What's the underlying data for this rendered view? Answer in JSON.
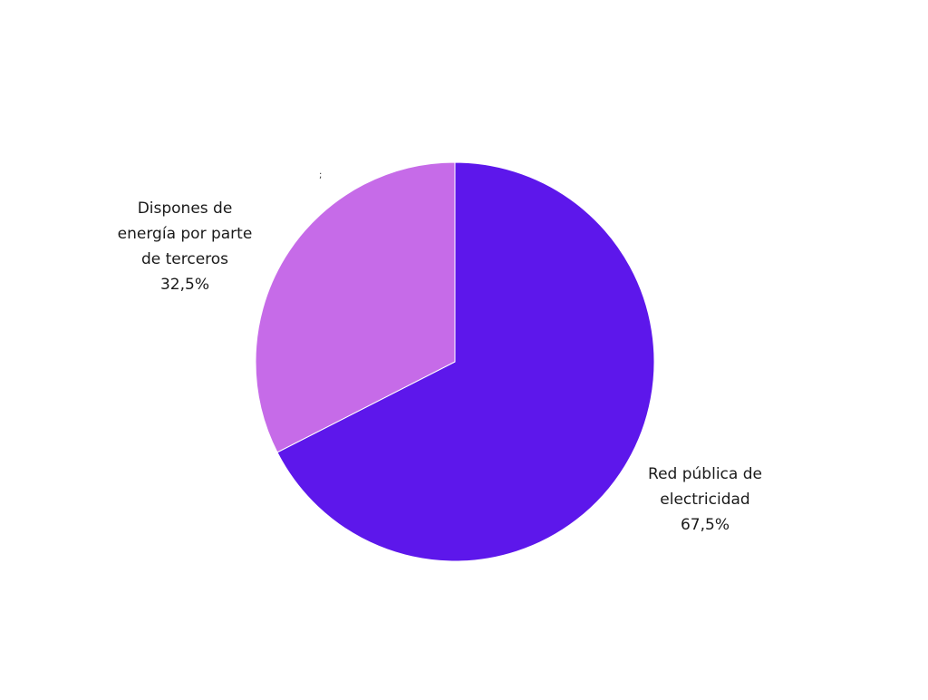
{
  "chart_data": {
    "type": "pie",
    "title": "",
    "start_angle_deg": 0,
    "direction": "clockwise",
    "slices": [
      {
        "label_lines": [
          "Red pública de",
          "electricidad"
        ],
        "value": 67.5,
        "value_label": "67,5%",
        "color": "#5d17eb"
      },
      {
        "label_lines": [
          "Dispones de",
          "energía por parte",
          "de terceros"
        ],
        "value": 32.5,
        "value_label": "32,5%",
        "color": "#c66be8"
      }
    ],
    "stray_mark": ";"
  }
}
